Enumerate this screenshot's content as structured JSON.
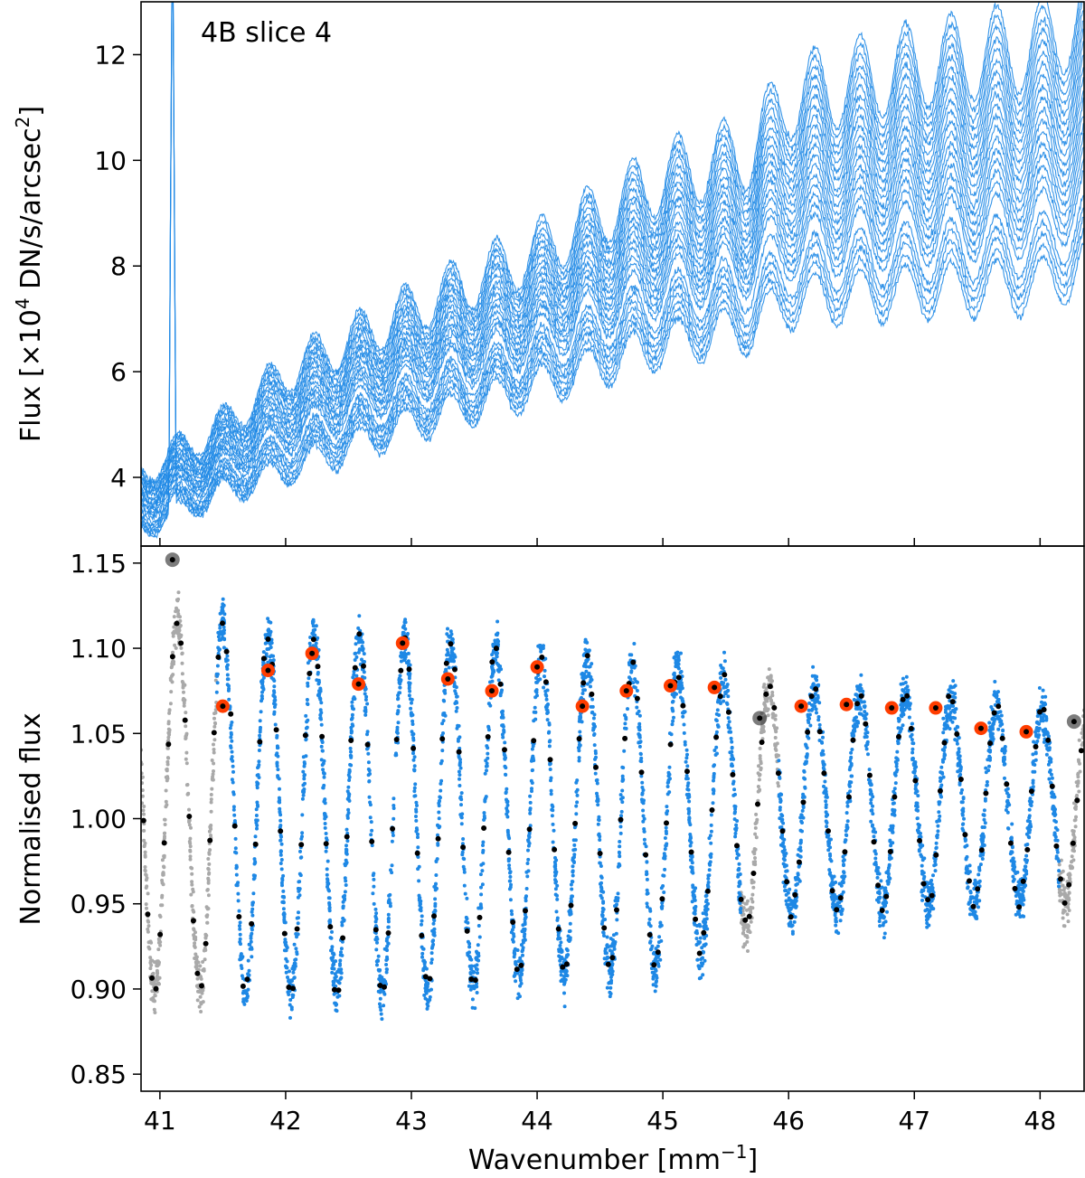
{
  "chart_data": [
    {
      "panel": "top",
      "type": "line",
      "title": "4B slice 4",
      "xlabel": "",
      "ylabel_parts": [
        "Flux [×10",
        "4",
        " DN/s/arcsec",
        "2",
        "]"
      ],
      "xlim": [
        40.85,
        48.35
      ],
      "ylim": [
        2.7,
        13.0
      ],
      "yticks": [
        4,
        6,
        8,
        10,
        12
      ],
      "xticks": [
        41,
        42,
        43,
        44,
        45,
        46,
        47,
        48
      ],
      "grid": false,
      "series_color": "#1e88e5",
      "series_count": 24,
      "series_description": "Two dozen spectra of one detector slice; baseline rises with wavenumber and carries fringes of period ~0.36 mm^-1",
      "baseline_samples": {
        "x": [
          40.85,
          41.5,
          42.0,
          43.0,
          44.0,
          45.0,
          45.7,
          46.0,
          47.0,
          48.0,
          48.35
        ],
        "y_low": [
          3.0,
          3.7,
          4.1,
          5.0,
          5.7,
          6.5,
          6.8,
          7.3,
          7.5,
          7.6,
          8.0
        ],
        "y_high": [
          4.1,
          5.0,
          6.0,
          7.2,
          8.3,
          9.7,
          10.2,
          11.2,
          11.8,
          12.2,
          12.8
        ]
      },
      "fringe": {
        "period": 0.362,
        "amplitude_fraction": 0.072,
        "phase_ref_x": 41.5
      },
      "spike": {
        "x": 41.1,
        "y_top": 13.0
      },
      "short_series_end_x": 45.65
    },
    {
      "panel": "bottom",
      "type": "scatter",
      "title": "",
      "xlabel_parts": [
        "Wavenumber [mm",
        "−1",
        "]"
      ],
      "ylabel": "Normalised flux",
      "xlim": [
        40.85,
        48.35
      ],
      "ylim": [
        0.84,
        1.16
      ],
      "yticks": [
        0.85,
        0.9,
        0.95,
        1.0,
        1.05,
        1.1,
        1.15
      ],
      "ytick_labels": [
        "0.85",
        "0.90",
        "0.95",
        "1.00",
        "1.05",
        "1.10",
        "1.15"
      ],
      "xticks": [
        41,
        42,
        43,
        44,
        45,
        46,
        47,
        48
      ],
      "grid": false,
      "colors": {
        "used": "#1e88e5",
        "rejected": "#a9a9a9",
        "binned": "#000000",
        "peak_marker": "#ff3d00",
        "rejected_peak": "#444444"
      },
      "fringe": {
        "period": 0.362,
        "first_peak_x": 41.5
      },
      "peaks_used": [
        {
          "x": 41.5,
          "y": 1.066
        },
        {
          "x": 41.86,
          "y": 1.087
        },
        {
          "x": 42.21,
          "y": 1.097
        },
        {
          "x": 42.58,
          "y": 1.079
        },
        {
          "x": 42.93,
          "y": 1.103
        },
        {
          "x": 43.29,
          "y": 1.082
        },
        {
          "x": 43.64,
          "y": 1.075
        },
        {
          "x": 44.0,
          "y": 1.089
        },
        {
          "x": 44.36,
          "y": 1.066
        },
        {
          "x": 44.71,
          "y": 1.075
        },
        {
          "x": 45.06,
          "y": 1.078
        },
        {
          "x": 45.41,
          "y": 1.077
        },
        {
          "x": 46.1,
          "y": 1.066
        },
        {
          "x": 46.46,
          "y": 1.067
        },
        {
          "x": 46.82,
          "y": 1.065
        },
        {
          "x": 47.17,
          "y": 1.065
        },
        {
          "x": 47.53,
          "y": 1.053
        },
        {
          "x": 47.89,
          "y": 1.051
        }
      ],
      "peaks_rejected": [
        {
          "x": 41.1,
          "y": 1.152
        },
        {
          "x": 45.77,
          "y": 1.059
        },
        {
          "x": 48.27,
          "y": 1.057
        }
      ],
      "envelope": {
        "x": [
          41.5,
          42.0,
          43.0,
          44.0,
          45.0,
          46.0,
          47.0,
          48.0
        ],
        "max": [
          1.13,
          1.12,
          1.12,
          1.11,
          1.1,
          1.085,
          1.08,
          1.07
        ],
        "min": [
          0.885,
          0.885,
          0.885,
          0.895,
          0.9,
          0.935,
          0.94,
          0.945
        ]
      },
      "rejected_regions": [
        [
          40.85,
          41.45
        ],
        [
          45.62,
          45.92
        ],
        [
          48.15,
          48.35
        ]
      ]
    }
  ]
}
